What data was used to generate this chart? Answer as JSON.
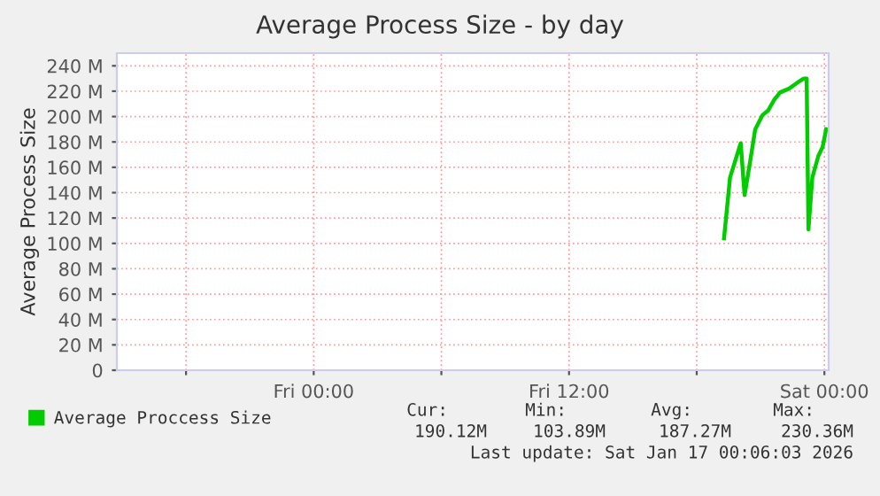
{
  "chart_data": {
    "type": "line",
    "title": "Average Process Size - by day",
    "ylabel": "Average Process Size",
    "x": [
      "2026-01-16T19:17",
      "2026-01-16T19:34",
      "2026-01-16T20:04",
      "2026-01-16T20:15",
      "2026-01-16T20:32",
      "2026-01-16T20:45",
      "2026-01-16T21:05",
      "2026-01-16T21:22",
      "2026-01-16T21:38",
      "2026-01-16T21:55",
      "2026-01-16T22:20",
      "2026-01-16T22:45",
      "2026-01-16T23:02",
      "2026-01-16T23:10",
      "2026-01-16T23:15",
      "2026-01-16T23:26",
      "2026-01-16T23:43",
      "2026-01-16T23:55",
      "2026-01-17T00:05"
    ],
    "series": [
      {
        "name": "Average Proccess Size",
        "color": "#00cc00",
        "values": [
          104,
          152,
          179,
          138,
          167,
          190,
          201,
          205,
          213,
          219,
          222,
          227,
          230,
          230,
          111,
          152,
          169,
          176,
          190
        ]
      }
    ],
    "xlim": [
      "2026-01-15T14:45",
      "2026-01-17T00:12"
    ],
    "xticks": [
      {
        "value": "2026-01-15T18:00",
        "label": null
      },
      {
        "value": "2026-01-16T00:00",
        "label": "Fri 00:00"
      },
      {
        "value": "2026-01-16T06:00",
        "label": null
      },
      {
        "value": "2026-01-16T12:00",
        "label": "Fri 12:00"
      },
      {
        "value": "2026-01-16T18:00",
        "label": null
      },
      {
        "value": "2026-01-17T00:00",
        "label": "Sat 00:00"
      }
    ],
    "ylim": [
      0,
      250
    ],
    "yticks": [
      0,
      {
        "value": 20,
        "label": "20 M"
      },
      {
        "value": 40,
        "label": "40 M"
      },
      {
        "value": 60,
        "label": "60 M"
      },
      {
        "value": 80,
        "label": "80 M"
      },
      {
        "value": 100,
        "label": "100 M"
      },
      {
        "value": 120,
        "label": "120 M"
      },
      {
        "value": 140,
        "label": "140 M"
      },
      {
        "value": 160,
        "label": "160 M"
      },
      {
        "value": 180,
        "label": "180 M"
      },
      {
        "value": 200,
        "label": "200 M"
      },
      {
        "value": 220,
        "label": "220 M"
      },
      {
        "value": 240,
        "label": "240 M"
      }
    ],
    "grid": true,
    "legend": "bottom",
    "marker": "none",
    "line_style": "solid",
    "annotations": [
      "Cur:",
      "Min:",
      "Avg:",
      "Max:",
      "190.12M",
      "103.89M",
      "187.27M",
      "230.36M",
      "Last update: Sat Jan 17 00:06:03 2026"
    ]
  }
}
